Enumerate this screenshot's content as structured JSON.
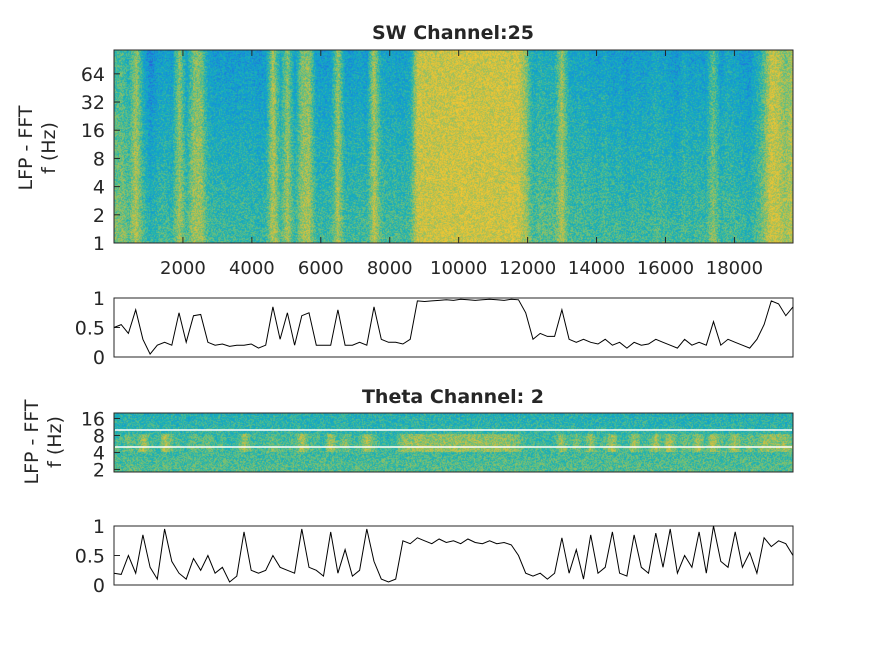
{
  "chart_data": [
    {
      "type": "heatmap",
      "title": "SW Channel:25",
      "ylabel": [
        "LFP - FFT",
        "f (Hz)"
      ],
      "xlim": [
        0,
        19700
      ],
      "ylim": [
        1,
        115
      ],
      "yscale": "log2",
      "xticks": [
        2000,
        4000,
        6000,
        8000,
        10000,
        12000,
        14000,
        16000,
        18000
      ],
      "yticks": [
        1,
        2,
        4,
        8,
        16,
        32,
        64
      ],
      "colormap": "parula"
    },
    {
      "type": "line",
      "xlim": [
        0,
        19700
      ],
      "ylim": [
        0,
        1
      ],
      "yticks": [
        "0",
        "0.5",
        "1"
      ],
      "values": [
        0.5,
        0.55,
        0.4,
        0.8,
        0.3,
        0.05,
        0.2,
        0.25,
        0.2,
        0.75,
        0.25,
        0.7,
        0.72,
        0.25,
        0.2,
        0.22,
        0.18,
        0.2,
        0.2,
        0.22,
        0.15,
        0.2,
        0.85,
        0.3,
        0.75,
        0.2,
        0.7,
        0.75,
        0.2,
        0.2,
        0.2,
        0.8,
        0.2,
        0.2,
        0.25,
        0.2,
        0.85,
        0.3,
        0.25,
        0.25,
        0.22,
        0.3,
        0.95,
        0.94,
        0.95,
        0.96,
        0.97,
        0.96,
        0.98,
        0.97,
        0.96,
        0.97,
        0.98,
        0.97,
        0.96,
        0.98,
        0.97,
        0.75,
        0.3,
        0.4,
        0.35,
        0.35,
        0.8,
        0.3,
        0.25,
        0.3,
        0.25,
        0.22,
        0.3,
        0.2,
        0.25,
        0.15,
        0.25,
        0.2,
        0.22,
        0.3,
        0.25,
        0.2,
        0.15,
        0.3,
        0.2,
        0.25,
        0.2,
        0.6,
        0.2,
        0.3,
        0.25,
        0.2,
        0.15,
        0.3,
        0.55,
        0.95,
        0.9,
        0.7,
        0.85
      ]
    },
    {
      "type": "heatmap",
      "title": "Theta Channel: 2",
      "ylabel": [
        "LFP - FFT",
        "f (Hz)"
      ],
      "xlim": [
        0,
        19700
      ],
      "ylim": [
        1.8,
        20
      ],
      "yscale": "log2",
      "yticks": [
        2,
        4,
        8,
        16
      ],
      "threshold_lines_hz": [
        5,
        10
      ],
      "colormap": "parula"
    },
    {
      "type": "line",
      "xlim": [
        0,
        19700
      ],
      "ylim": [
        0,
        1
      ],
      "yticks": [
        "0",
        "0.5",
        "1"
      ],
      "values": [
        0.2,
        0.18,
        0.5,
        0.2,
        0.85,
        0.3,
        0.1,
        0.95,
        0.4,
        0.2,
        0.1,
        0.45,
        0.25,
        0.5,
        0.2,
        0.3,
        0.05,
        0.15,
        0.9,
        0.25,
        0.2,
        0.25,
        0.5,
        0.3,
        0.25,
        0.2,
        0.95,
        0.3,
        0.25,
        0.15,
        0.9,
        0.2,
        0.6,
        0.15,
        0.25,
        0.95,
        0.4,
        0.1,
        0.05,
        0.1,
        0.75,
        0.7,
        0.8,
        0.75,
        0.7,
        0.78,
        0.72,
        0.75,
        0.7,
        0.78,
        0.72,
        0.7,
        0.75,
        0.7,
        0.72,
        0.68,
        0.5,
        0.2,
        0.15,
        0.2,
        0.1,
        0.2,
        0.8,
        0.2,
        0.6,
        0.1,
        0.85,
        0.2,
        0.3,
        0.9,
        0.2,
        0.15,
        0.85,
        0.3,
        0.2,
        0.88,
        0.3,
        0.95,
        0.2,
        0.5,
        0.3,
        0.9,
        0.2,
        1.0,
        0.4,
        0.3,
        0.9,
        0.3,
        0.55,
        0.2,
        0.8,
        0.65,
        0.75,
        0.7,
        0.5
      ]
    }
  ]
}
